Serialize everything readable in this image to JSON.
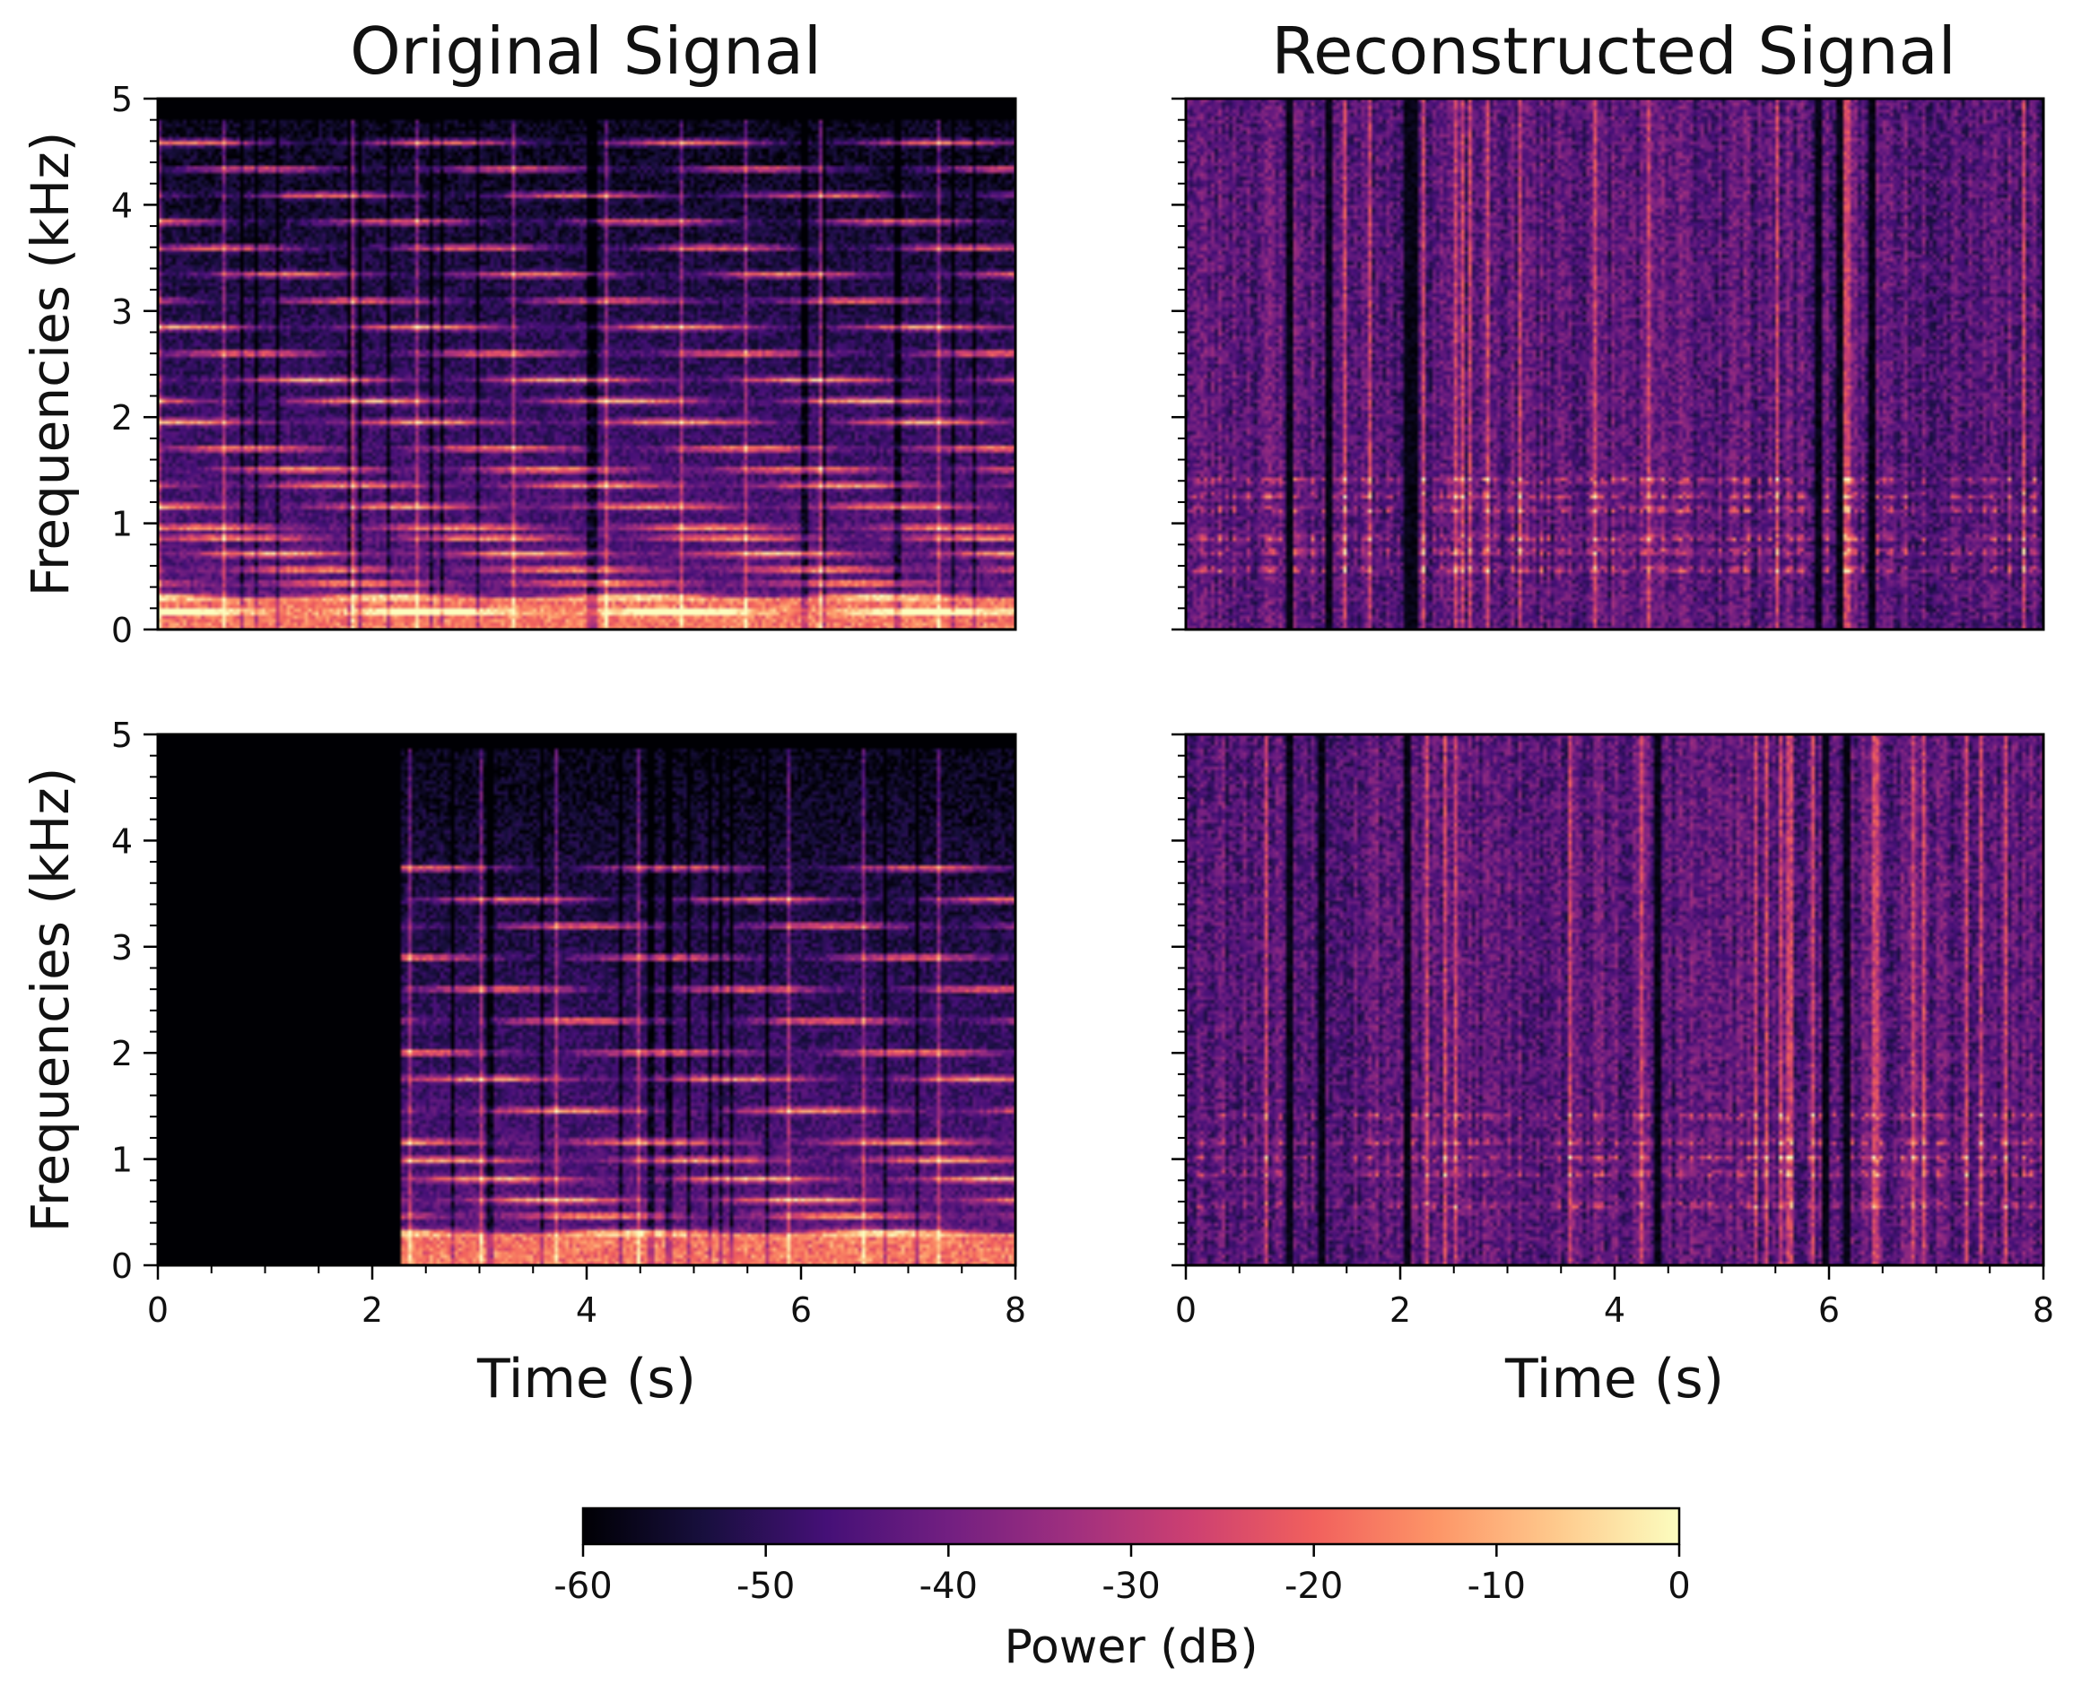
{
  "chart_data": [
    {
      "type": "heatmap",
      "panel": "top-left",
      "title": "Original Signal",
      "xlabel": "",
      "ylabel": "Frequencies (kHz)",
      "xlim": [
        0,
        8
      ],
      "ylim": [
        0,
        5
      ],
      "yticks": [
        "0",
        "1",
        "2",
        "3",
        "4",
        "5"
      ],
      "xticks": [],
      "onset_s": 0,
      "onsets_s": [
        0,
        0.6,
        1.2,
        1.8,
        2.4,
        3.3,
        4.2,
        4.9,
        5.5,
        6.2,
        7.3
      ],
      "harmonics_khz": [
        0.15,
        0.3,
        0.42,
        0.55,
        0.7,
        0.85,
        0.95,
        1.15,
        1.35,
        1.5,
        1.7,
        1.95,
        2.15,
        2.35,
        2.6,
        2.85,
        3.1,
        3.35,
        3.6,
        3.85,
        4.1,
        4.35,
        4.6
      ],
      "max_freq_khz": 4.82,
      "dB_floor": -60,
      "dB_peak": -8,
      "style": "original",
      "seed": 11
    },
    {
      "type": "heatmap",
      "panel": "top-right",
      "title": "Reconstructed Signal",
      "xlabel": "",
      "ylabel": "",
      "xlim": [
        0,
        8
      ],
      "ylim": [
        0,
        5
      ],
      "yticks": [],
      "xticks": [],
      "onset_s": 0,
      "dark_columns_s": [
        0.95,
        1.3,
        2.05,
        2.1,
        5.9,
        6.1,
        6.4
      ],
      "harmonics_khz": [
        0.55,
        0.72,
        0.85,
        1.12,
        1.25,
        1.4
      ],
      "dB_floor": -60,
      "dB_peak": -15,
      "style": "reconstructed",
      "seed": 23
    },
    {
      "type": "heatmap",
      "panel": "bottom-left",
      "title": "",
      "xlabel": "Time (s)",
      "ylabel": "Frequencies (kHz)",
      "xlim": [
        0,
        8
      ],
      "ylim": [
        0,
        5
      ],
      "yticks": [
        "0",
        "1",
        "2",
        "3",
        "4",
        "5"
      ],
      "xticks": [
        "0",
        "2",
        "4",
        "6",
        "8"
      ],
      "onset_s": 2.25,
      "onsets_s": [
        2.35,
        3.0,
        3.7,
        4.5,
        5.9,
        6.6,
        7.3
      ],
      "harmonics_khz": [
        0.3,
        0.45,
        0.6,
        0.8,
        0.98,
        1.15,
        1.45,
        1.75,
        2.0,
        2.3,
        2.6,
        2.9,
        3.2,
        3.45,
        3.75
      ],
      "max_freq_khz": 4.88,
      "dB_floor": -60,
      "dB_peak": -8,
      "style": "original",
      "seed": 37
    },
    {
      "type": "heatmap",
      "panel": "bottom-right",
      "title": "",
      "xlabel": "Time (s)",
      "ylabel": "",
      "xlim": [
        0,
        8
      ],
      "ylim": [
        0,
        5
      ],
      "yticks": [],
      "xticks": [
        "0",
        "2",
        "4",
        "6",
        "8"
      ],
      "onset_s": 0,
      "dark_columns_s": [
        0.95,
        1.25,
        2.05,
        4.4,
        5.95,
        6.15
      ],
      "harmonics_khz": [
        0.55,
        0.85,
        1.0,
        1.15,
        1.4
      ],
      "dB_floor": -60,
      "dB_peak": -20,
      "style": "reconstructed",
      "seed": 53
    }
  ],
  "colorbar": {
    "label": "Power (dB)",
    "range_db": [
      -60,
      0
    ],
    "ticks": [
      "-60",
      "-50",
      "-40",
      "-30",
      "-20",
      "-10",
      "0"
    ],
    "colormap": "magma",
    "stops": [
      "#000004",
      "#180f3e",
      "#451077",
      "#721f81",
      "#9f2f7f",
      "#cd4071",
      "#f1605d",
      "#fd9567",
      "#feca8d",
      "#fcfdbf"
    ]
  }
}
